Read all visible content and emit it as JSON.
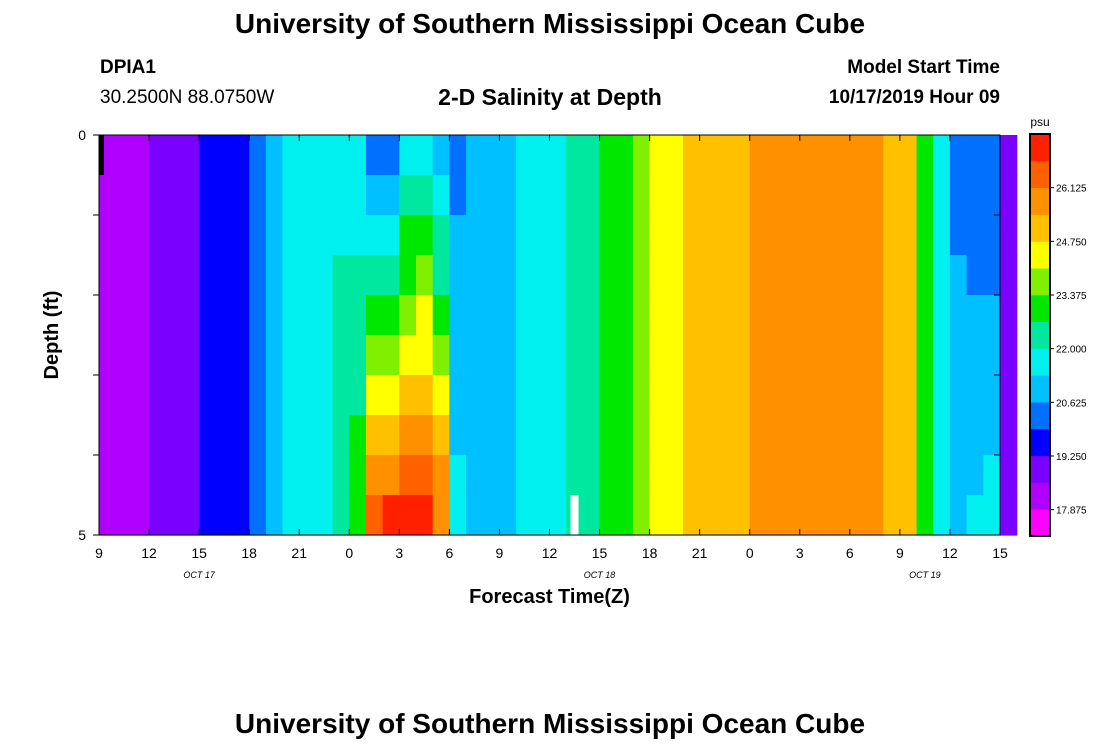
{
  "header": {
    "title": "University of Southern Mississippi Ocean Cube",
    "station_id": "DPIA1",
    "station_coords": "30.2500N 88.0750W",
    "chart_title": "2-D Salinity at Depth",
    "model_start_label": "Model Start Time",
    "model_start_value": "10/17/2019 Hour 09"
  },
  "footer": {
    "title": "University of Southern Mississippi Ocean Cube"
  },
  "colors": {
    "scale": [
      "#ff00ff",
      "#b000ff",
      "#7a00ff",
      "#0000ff",
      "#0070ff",
      "#00c0ff",
      "#00f0f0",
      "#00e8a0",
      "#00e800",
      "#80f000",
      "#ffff00",
      "#ffc000",
      "#ff9000",
      "#ff6000",
      "#ff2000"
    ],
    "missing": "#ffffff",
    "marker": "#000000"
  },
  "chart_data": {
    "type": "heatmap",
    "title": "2-D Salinity at Depth",
    "xlabel": "Forecast Time(Z)",
    "ylabel": "Depth (ft)",
    "x_start_hour_label": 9,
    "x_step_hours": 3,
    "x_ticks": [
      "9",
      "12",
      "15",
      "18",
      "21",
      "0",
      "3",
      "6",
      "9",
      "12",
      "15",
      "18",
      "21",
      "0",
      "3",
      "6",
      "9",
      "12",
      "15"
    ],
    "date_labels": [
      {
        "label": "OCT 17",
        "at_tick": 2
      },
      {
        "label": "OCT 18",
        "at_tick": 10
      },
      {
        "label": "OCT 19",
        "at_tick": 16.5
      }
    ],
    "y_ticks": [
      "0",
      "5"
    ],
    "ylim": [
      0,
      5
    ],
    "depth_levels": [
      0,
      0.5,
      1,
      1.5,
      2,
      2.5,
      3,
      3.5,
      4,
      4.5,
      5
    ],
    "time_hours": [
      9,
      10,
      11,
      12,
      13,
      14,
      15,
      16,
      17,
      18,
      19,
      20,
      21,
      22,
      23,
      24,
      25,
      26,
      27,
      28,
      29,
      30,
      31,
      32,
      33,
      34,
      35,
      36,
      37,
      38,
      39,
      40,
      41,
      42,
      43,
      44,
      45,
      46,
      47,
      48,
      49,
      50,
      51,
      52,
      53,
      54,
      55,
      56,
      57,
      58,
      59,
      60,
      61,
      62,
      63
    ],
    "colorbar": {
      "unit": "psu",
      "min": 17.2,
      "max": 27.5,
      "tick_labels": [
        "17.875",
        "19.250",
        "20.625",
        "22.000",
        "23.375",
        "24.750",
        "26.125"
      ],
      "tick_values": [
        17.875,
        19.25,
        20.625,
        22.0,
        23.375,
        24.75,
        26.125
      ]
    },
    "salinity_surface": [
      18.0,
      18.0,
      18.3,
      18.6,
      18.9,
      19.1,
      19.4,
      19.6,
      19.8,
      20.4,
      21.3,
      21.6,
      21.5,
      21.7,
      21.9,
      21.5,
      20.0,
      20.0,
      21.2,
      21.6,
      20.6,
      20.4,
      20.6,
      21.2,
      21.3,
      21.4,
      21.6,
      22.0,
      22.3,
      22.6,
      23.0,
      23.3,
      23.8,
      24.2,
      24.6,
      25.0,
      25.0,
      25.2,
      25.3,
      25.5,
      25.6,
      25.7,
      25.8,
      25.8,
      25.9,
      25.8,
      25.7,
      25.4,
      25.1,
      22.8,
      22.0,
      20.3,
      20.2,
      20.0,
      19.2
    ],
    "salinity_bottom": [
      18.0,
      18.0,
      18.3,
      18.6,
      18.9,
      19.1,
      19.4,
      19.6,
      19.8,
      20.4,
      21.3,
      21.6,
      21.7,
      21.9,
      22.3,
      23.2,
      26.6,
      27.2,
      27.3,
      27.2,
      26.4,
      21.5,
      21.3,
      21.2,
      21.3,
      21.4,
      21.6,
      22.0,
      22.3,
      22.6,
      23.0,
      23.3,
      23.8,
      24.2,
      24.6,
      25.0,
      25.0,
      25.2,
      25.3,
      25.5,
      25.6,
      25.7,
      25.8,
      25.8,
      25.9,
      25.8,
      25.7,
      25.4,
      25.1,
      22.8,
      22.0,
      21.3,
      21.4,
      21.7,
      19.2
    ],
    "missing_cell": {
      "time_hour": 37.5,
      "depth_from": 4.5,
      "depth_to": 5
    }
  }
}
